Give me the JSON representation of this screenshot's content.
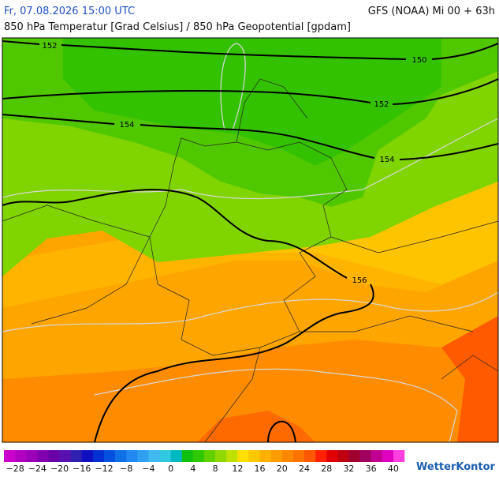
{
  "header": {
    "date": "Fr, 07.08.2026 15:00 UTC",
    "model": "GFS (NOAA) Mi 00 + 63h",
    "title": "850 hPa Temperatur [Grad Celsius] / 850 hPa Geopotential [gpdam]"
  },
  "map": {
    "contour_labels": [
      "152",
      "150",
      "152",
      "154",
      "154",
      "156"
    ]
  },
  "colorbar": {
    "ticks": [
      "−28",
      "−24",
      "−20",
      "−16",
      "−12",
      "−8",
      "−4",
      "0",
      "4",
      "8",
      "12",
      "16",
      "20",
      "24",
      "28",
      "32",
      "36",
      "40"
    ],
    "colors": [
      "#cc00cc",
      "#b000c0",
      "#9900b8",
      "#8000b0",
      "#6a00a8",
      "#5a10b0",
      "#3020b0",
      "#1010c0",
      "#0030d0",
      "#0050e0",
      "#1070e8",
      "#2088f0",
      "#30a0f0",
      "#40b8f0",
      "#30c8e0",
      "#00b8c0",
      "#10c010",
      "#30c800",
      "#60d000",
      "#90d800",
      "#c0e000",
      "#ffe000",
      "#ffc800",
      "#ffb000",
      "#ff9c00",
      "#ff8800",
      "#ff7400",
      "#ff5800",
      "#ff2000",
      "#e00000",
      "#c00010",
      "#a00030",
      "#a00060",
      "#c00090",
      "#e000c0",
      "#ff40e0"
    ]
  },
  "logo": "WetterKontor"
}
